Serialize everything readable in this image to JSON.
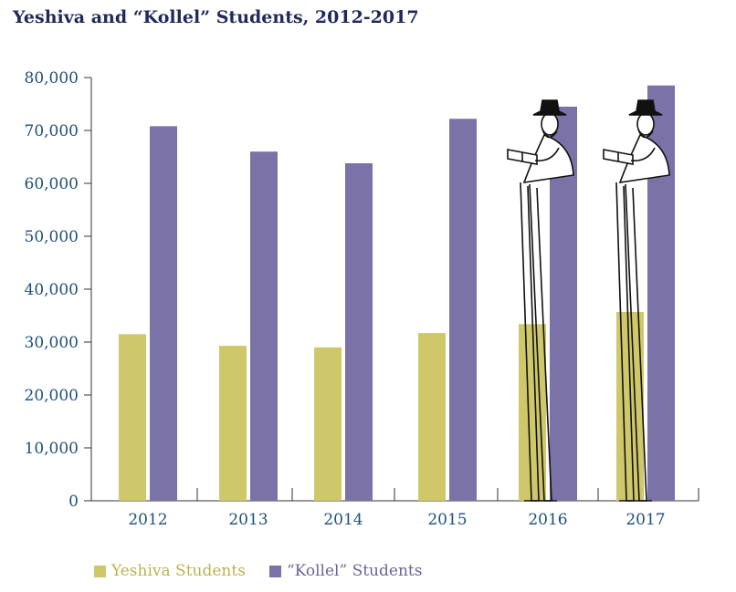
{
  "title": "Yeshiva and “Kollel” Students, 2012-2017",
  "colors": {
    "yeshiva": "#cfc86a",
    "kollel": "#7b72a8",
    "axis_text": "#1f4f7a",
    "title": "#1f2a5a"
  },
  "legend": {
    "yeshiva_label": "Yeshiva Students",
    "kollel_label": "“Kollel” Students"
  },
  "illustration": {
    "icon": "stilt-walking-reader-icon",
    "count": 2
  },
  "chart_data": {
    "type": "bar",
    "title": "Yeshiva and “Kollel” Students, 2012-2017",
    "xlabel": "",
    "ylabel": "",
    "categories": [
      "2012",
      "2013",
      "2014",
      "2015",
      "2016",
      "2017"
    ],
    "series": [
      {
        "name": "Yeshiva Students",
        "values": [
          31500,
          29300,
          29000,
          31700,
          33400,
          35700
        ]
      },
      {
        "name": "“Kollel” Students",
        "values": [
          70800,
          66000,
          63800,
          72200,
          74500,
          78500
        ]
      }
    ],
    "ylim": [
      0,
      80000
    ],
    "yticks": [
      0,
      10000,
      20000,
      30000,
      40000,
      50000,
      60000,
      70000,
      80000
    ],
    "ytick_labels": [
      "0",
      "10,000",
      "20,000",
      "30,000",
      "40,000",
      "50,000",
      "60,000",
      "70,000",
      "80,000"
    ],
    "grid": false,
    "legend_position": "bottom-left"
  }
}
